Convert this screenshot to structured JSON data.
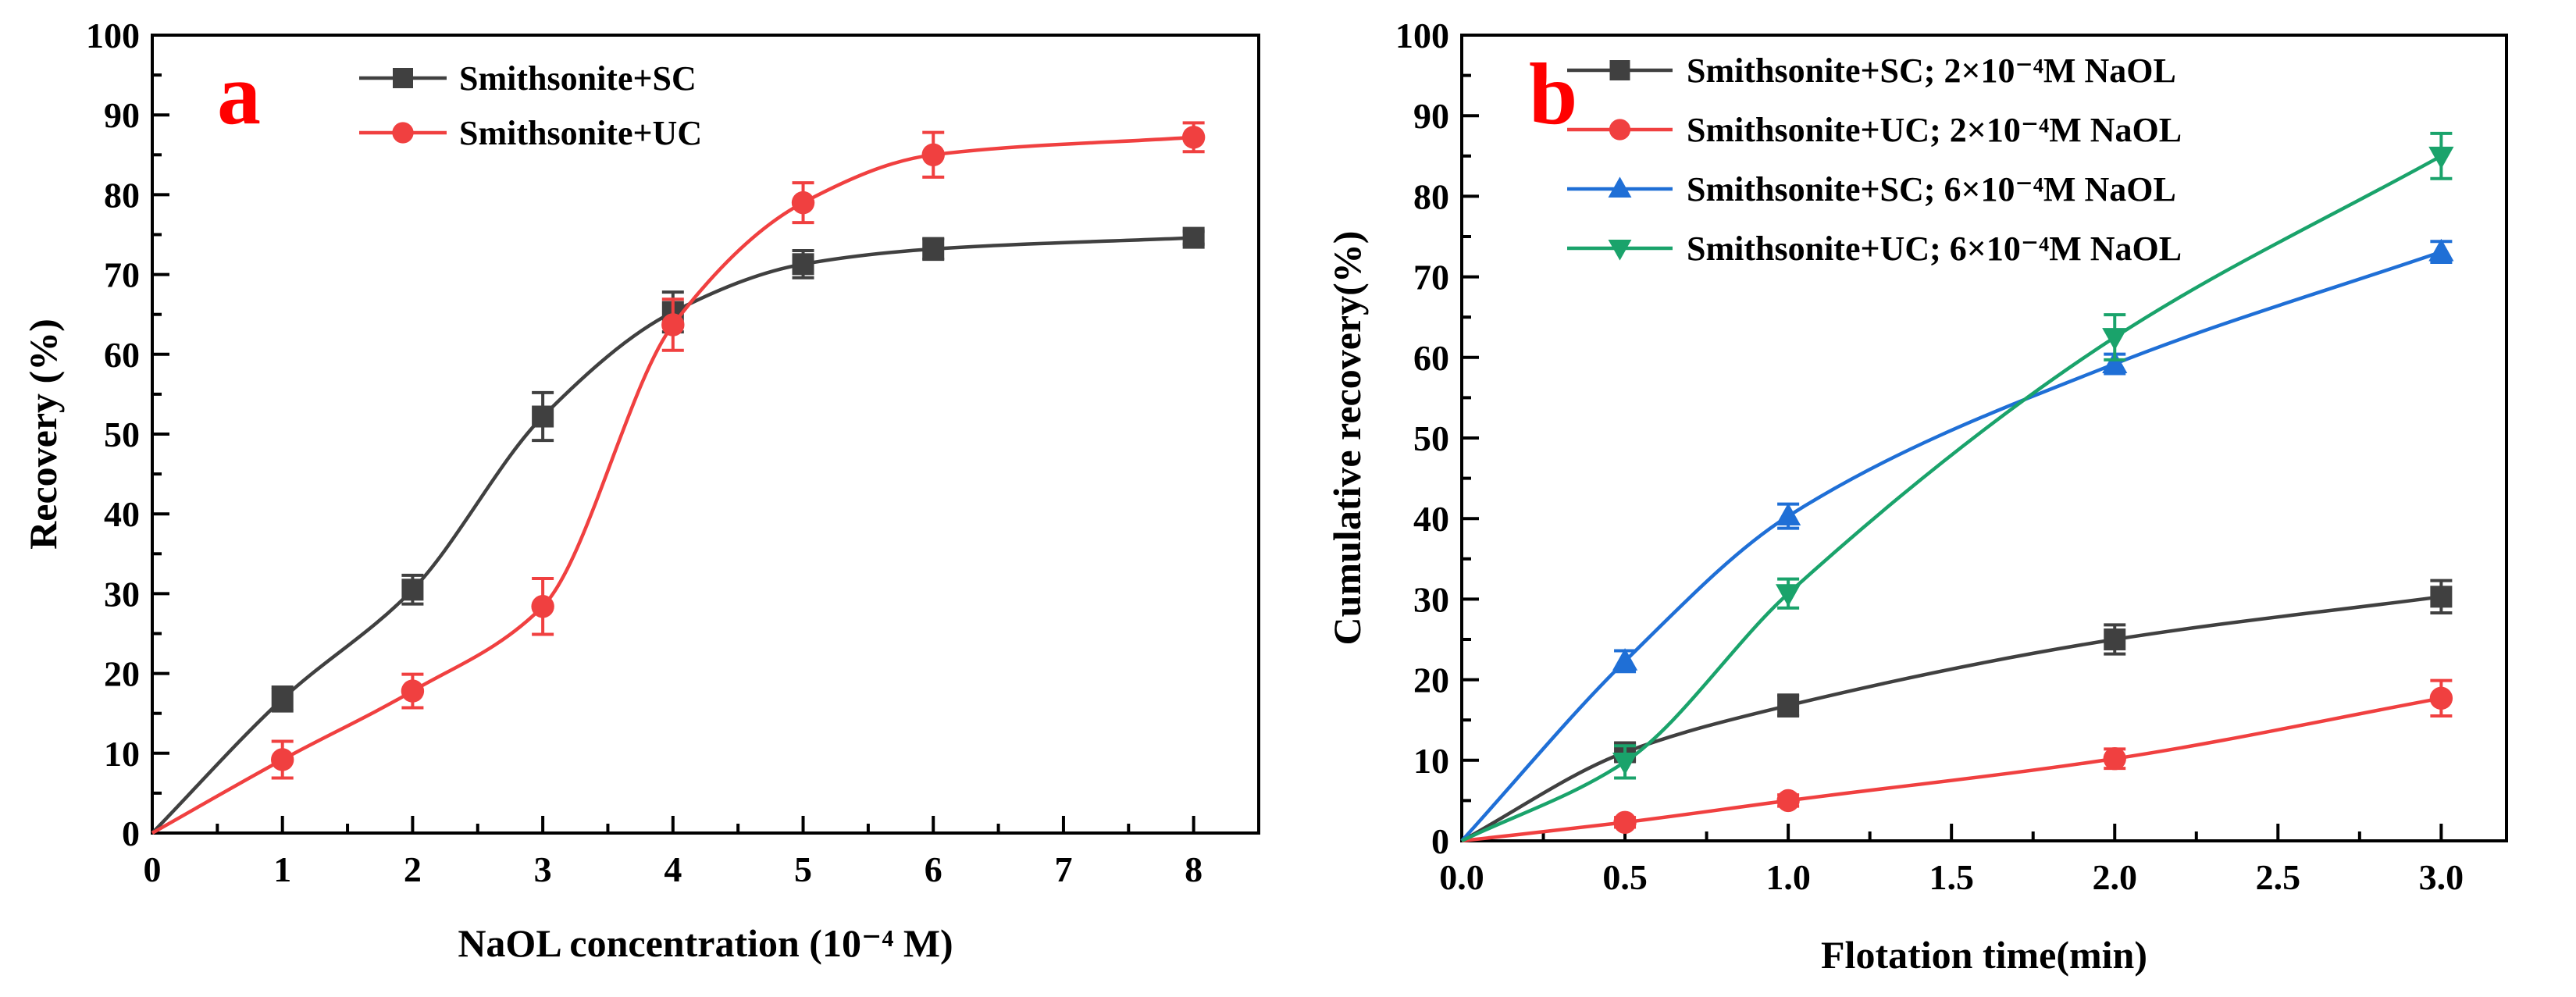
{
  "chart_data": [
    {
      "type": "line",
      "panel_label": "a",
      "xlabel": "NaOL concentration (10⁻⁴ M)",
      "ylabel": "Recovery (%)",
      "xlim": [
        0,
        8.5
      ],
      "ylim": [
        0,
        100
      ],
      "xticks": [
        0,
        1,
        2,
        3,
        4,
        5,
        6,
        7,
        8
      ],
      "yticks": [
        0,
        10,
        20,
        30,
        40,
        50,
        60,
        70,
        80,
        90,
        100
      ],
      "xtick_labels": [
        "0",
        "1",
        "2",
        "3",
        "4",
        "5",
        "6",
        "7",
        "8"
      ],
      "ytick_labels": [
        "0",
        "10",
        "20",
        "30",
        "40",
        "50",
        "60",
        "70",
        "80",
        "90",
        "100"
      ],
      "legend_position": "top-center",
      "grid": false,
      "series": [
        {
          "name": "Smithsonite+SC",
          "color": "#404040",
          "marker": "square",
          "x": [
            0,
            1,
            2,
            3,
            4,
            5,
            6,
            8
          ],
          "values": [
            0,
            16.8,
            30.5,
            52.2,
            65.3,
            71.3,
            73.2,
            74.6
          ],
          "errors": [
            0,
            1.5,
            1.8,
            3,
            2.5,
            1.7,
            1.3,
            0.8
          ]
        },
        {
          "name": "Smithsonite+UC",
          "color": "#f04040",
          "marker": "circle",
          "x": [
            0,
            1,
            2,
            3,
            4,
            5,
            6,
            8
          ],
          "values": [
            0,
            9.2,
            17.8,
            28.4,
            63.7,
            79,
            85,
            87.2
          ],
          "errors": [
            0,
            2.3,
            2.1,
            3.5,
            3.2,
            2.5,
            2.8,
            1.8
          ]
        }
      ]
    },
    {
      "type": "line",
      "panel_label": "b",
      "xlabel": "Flotation time(min)",
      "ylabel": "Cumulative recovery(%)",
      "xlim": [
        0,
        3.2
      ],
      "ylim": [
        0,
        100
      ],
      "xticks": [
        0,
        0.5,
        1,
        1.5,
        2,
        2.5,
        3
      ],
      "yticks": [
        0,
        10,
        20,
        30,
        40,
        50,
        60,
        70,
        80,
        90,
        100
      ],
      "xtick_labels": [
        "0.0",
        "0.5",
        "1.0",
        "1.5",
        "2.0",
        "2.5",
        "3.0"
      ],
      "ytick_labels": [
        "0",
        "10",
        "20",
        "30",
        "40",
        "50",
        "60",
        "70",
        "80",
        "90",
        "100"
      ],
      "legend_position": "top-center",
      "grid": false,
      "series": [
        {
          "name": "Smithsonite+SC; 2×10⁻⁴M NaOL",
          "color": "#404040",
          "marker": "square",
          "x": [
            0,
            0.5,
            1,
            2,
            3
          ],
          "values": [
            0,
            11,
            16.8,
            25,
            30.3
          ],
          "errors": [
            0,
            1,
            1.3,
            1.8,
            2
          ]
        },
        {
          "name": "Smithsonite+UC; 2×10⁻⁴M NaOL",
          "color": "#f04040",
          "marker": "circle",
          "x": [
            0,
            0.5,
            1,
            2,
            3
          ],
          "values": [
            0,
            2.3,
            5,
            10.2,
            17.7
          ],
          "errors": [
            0,
            0.6,
            0.7,
            1.2,
            2.2
          ]
        },
        {
          "name": "Smithsonite+SC; 6×10⁻⁴M NaOL",
          "color": "#1f6fd6",
          "marker": "triangle-up",
          "x": [
            0,
            0.5,
            1,
            2,
            3
          ],
          "values": [
            0,
            22.3,
            40.3,
            59.2,
            73.1
          ],
          "errors": [
            0,
            1.3,
            1.5,
            1.2,
            1.3
          ]
        },
        {
          "name": "Smithsonite+UC; 6×10⁻⁴M NaOL",
          "color": "#1aa36b",
          "marker": "triangle-down",
          "x": [
            0,
            0.5,
            1,
            2,
            3
          ],
          "values": [
            0,
            9.8,
            30.7,
            62.5,
            85
          ],
          "errors": [
            0,
            2,
            1.8,
            2.8,
            2.8
          ]
        }
      ]
    }
  ]
}
